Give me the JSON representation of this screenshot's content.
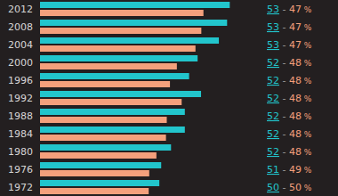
{
  "chart_data": {
    "type": "bar",
    "orientation": "horizontal",
    "tick_labels": "y",
    "categories": [
      "2012",
      "2008",
      "2004",
      "2000",
      "1996",
      "1992",
      "1988",
      "1984",
      "1980",
      "1976",
      "1972"
    ],
    "xlim": [
      0,
      80
    ],
    "series": [
      {
        "color": "#22c5cc",
        "values": [
          71.4,
          70.4,
          67.3,
          59.3,
          56.1,
          60.6,
          54.5,
          54.5,
          49.3,
          45.6,
          44.9
        ],
        "share": [
          53,
          53,
          53,
          52,
          52,
          52,
          52,
          52,
          52,
          51,
          50
        ]
      },
      {
        "color": "#f4a07c",
        "values": [
          61.5,
          60.7,
          58.5,
          51.5,
          48.9,
          53.3,
          47.7,
          47.4,
          43.8,
          41.1,
          40.9
        ],
        "share": [
          47,
          47,
          47,
          48,
          48,
          48,
          48,
          48,
          48,
          49,
          50
        ]
      }
    ],
    "share_separator": "-",
    "share_suffix": "%"
  }
}
